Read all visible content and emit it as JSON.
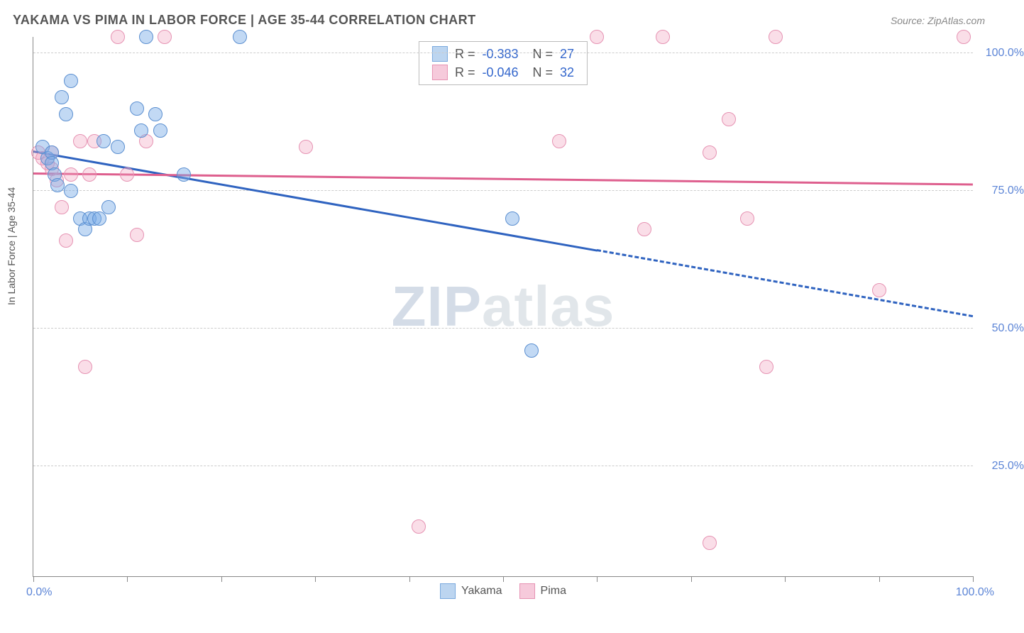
{
  "header": {
    "title": "YAKAMA VS PIMA IN LABOR FORCE | AGE 35-44 CORRELATION CHART",
    "source": "Source: ZipAtlas.com"
  },
  "y_axis": {
    "label": "In Labor Force | Age 35-44",
    "ticks": [
      {
        "value": 25,
        "label": "25.0%"
      },
      {
        "value": 50,
        "label": "50.0%"
      },
      {
        "value": 75,
        "label": "75.0%"
      },
      {
        "value": 100,
        "label": "100.0%"
      }
    ],
    "min_visible": 5,
    "max_visible": 103
  },
  "x_axis": {
    "origin_label": "0.0%",
    "max_label": "100.0%",
    "min": 0,
    "max": 100,
    "tick_positions": [
      0,
      10,
      20,
      30,
      40,
      50,
      60,
      70,
      80,
      90,
      100
    ]
  },
  "grid_color": "#cccccc",
  "background_color": "#ffffff",
  "watermark": "ZIPatlas",
  "series": [
    {
      "name": "Yakama",
      "fill": "rgba(120,170,230,0.45)",
      "stroke": "#5b8fd0",
      "swatch_fill": "#bcd5f0",
      "swatch_stroke": "#7aa9de",
      "R": "-0.383",
      "N": "27",
      "marker_radius": 10,
      "trend": {
        "x1": 0,
        "y1": 82,
        "x2_solid": 60,
        "y2_solid": 64,
        "x2_dash": 100,
        "y2_dash": 52,
        "color": "#2f63c0",
        "width": 3
      },
      "points": [
        {
          "x": 1,
          "y": 83
        },
        {
          "x": 1.5,
          "y": 81
        },
        {
          "x": 2,
          "y": 82
        },
        {
          "x": 2,
          "y": 80
        },
        {
          "x": 2.3,
          "y": 78
        },
        {
          "x": 2.6,
          "y": 76
        },
        {
          "x": 3,
          "y": 92
        },
        {
          "x": 3.5,
          "y": 89
        },
        {
          "x": 4,
          "y": 95
        },
        {
          "x": 4,
          "y": 75
        },
        {
          "x": 5,
          "y": 70
        },
        {
          "x": 5.5,
          "y": 68
        },
        {
          "x": 6,
          "y": 70
        },
        {
          "x": 6.5,
          "y": 70
        },
        {
          "x": 7,
          "y": 70
        },
        {
          "x": 7.5,
          "y": 84
        },
        {
          "x": 8,
          "y": 72
        },
        {
          "x": 9,
          "y": 83
        },
        {
          "x": 11,
          "y": 90
        },
        {
          "x": 11.5,
          "y": 86
        },
        {
          "x": 12,
          "y": 103
        },
        {
          "x": 13,
          "y": 89
        },
        {
          "x": 13.5,
          "y": 86
        },
        {
          "x": 16,
          "y": 78
        },
        {
          "x": 22,
          "y": 103
        },
        {
          "x": 51,
          "y": 70
        },
        {
          "x": 53,
          "y": 46
        }
      ]
    },
    {
      "name": "Pima",
      "fill": "rgba(240,160,190,0.35)",
      "stroke": "#e693b3",
      "swatch_fill": "#f6cadb",
      "swatch_stroke": "#e693b3",
      "R": "-0.046",
      "N": "32",
      "marker_radius": 10,
      "trend": {
        "x1": 0,
        "y1": 78,
        "x2_solid": 100,
        "y2_solid": 76,
        "x2_dash": 100,
        "y2_dash": 76,
        "color": "#de5f8e",
        "width": 3
      },
      "points": [
        {
          "x": 1,
          "y": 81
        },
        {
          "x": 1.5,
          "y": 80
        },
        {
          "x": 2,
          "y": 79
        },
        {
          "x": 2,
          "y": 82
        },
        {
          "x": 2.5,
          "y": 77
        },
        {
          "x": 3,
          "y": 72
        },
        {
          "x": 3.5,
          "y": 66
        },
        {
          "x": 4,
          "y": 78
        },
        {
          "x": 5,
          "y": 84
        },
        {
          "x": 5.5,
          "y": 43
        },
        {
          "x": 6,
          "y": 78
        },
        {
          "x": 6.5,
          "y": 84
        },
        {
          "x": 9,
          "y": 103
        },
        {
          "x": 10,
          "y": 78
        },
        {
          "x": 11,
          "y": 67
        },
        {
          "x": 12,
          "y": 84
        },
        {
          "x": 14,
          "y": 103
        },
        {
          "x": 29,
          "y": 83
        },
        {
          "x": 41,
          "y": 14
        },
        {
          "x": 56,
          "y": 84
        },
        {
          "x": 60,
          "y": 103
        },
        {
          "x": 65,
          "y": 68
        },
        {
          "x": 67,
          "y": 103
        },
        {
          "x": 72,
          "y": 82
        },
        {
          "x": 72,
          "y": 11
        },
        {
          "x": 74,
          "y": 88
        },
        {
          "x": 76,
          "y": 70
        },
        {
          "x": 78,
          "y": 43
        },
        {
          "x": 79,
          "y": 103
        },
        {
          "x": 90,
          "y": 57
        },
        {
          "x": 99,
          "y": 103
        },
        {
          "x": 0.5,
          "y": 82
        }
      ]
    }
  ],
  "legend_bottom": [
    {
      "label": "Yakama",
      "series": 0
    },
    {
      "label": "Pima",
      "series": 1
    }
  ]
}
